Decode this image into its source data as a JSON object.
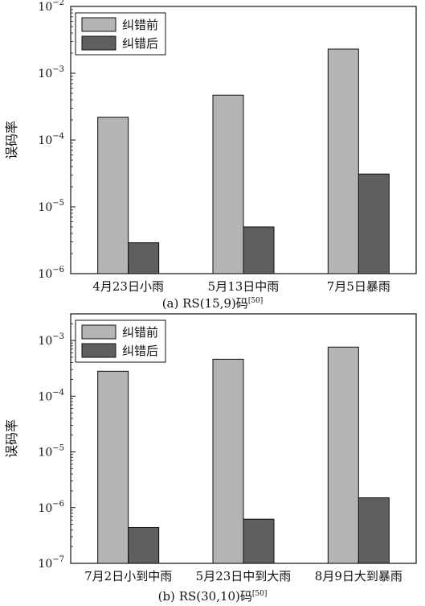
{
  "chart_data": [
    {
      "type": "bar",
      "caption_label": "(a)",
      "caption_code": "RS(15,9)码",
      "caption_ref": "[50]",
      "ylabel": "误码率",
      "yscale": "log",
      "ylim": [
        1e-06,
        0.01
      ],
      "y_ticks": [
        {
          "base": "10",
          "exp": "−6"
        },
        {
          "base": "10",
          "exp": "−5"
        },
        {
          "base": "10",
          "exp": "−4"
        },
        {
          "base": "10",
          "exp": "−3"
        },
        {
          "base": "10",
          "exp": "−2"
        }
      ],
      "categories": [
        "4月23日小雨",
        "5月13日中雨",
        "7月5日暴雨"
      ],
      "series": [
        {
          "name": "纠错前",
          "color": "#b4b4b4",
          "values": [
            0.00022,
            0.00047,
            0.0023
          ]
        },
        {
          "name": "纠错后",
          "color": "#5f5f5f",
          "values": [
            2.9e-06,
            5e-06,
            3.1e-05
          ]
        }
      ],
      "legend_position": "top-left",
      "grid": false
    },
    {
      "type": "bar",
      "caption_label": "(b)",
      "caption_code": "RS(30,10)码",
      "caption_ref": "[50]",
      "ylabel": "误码率",
      "yscale": "log",
      "ylim": [
        1e-07,
        0.003
      ],
      "y_ticks": [
        {
          "base": "10",
          "exp": "−7"
        },
        {
          "base": "10",
          "exp": "−6"
        },
        {
          "base": "10",
          "exp": "−5"
        },
        {
          "base": "10",
          "exp": "−4"
        },
        {
          "base": "10",
          "exp": "−3"
        }
      ],
      "categories": [
        "7月2日小到中雨",
        "5月23日中到大雨",
        "8月9日大到暴雨"
      ],
      "series": [
        {
          "name": "纠错前",
          "color": "#b4b4b4",
          "values": [
            0.00028,
            0.00046,
            0.00076
          ]
        },
        {
          "name": "纠错后",
          "color": "#5f5f5f",
          "values": [
            4.4e-07,
            6.2e-07,
            1.5e-06
          ]
        }
      ],
      "legend_position": "top-left",
      "grid": false
    }
  ]
}
